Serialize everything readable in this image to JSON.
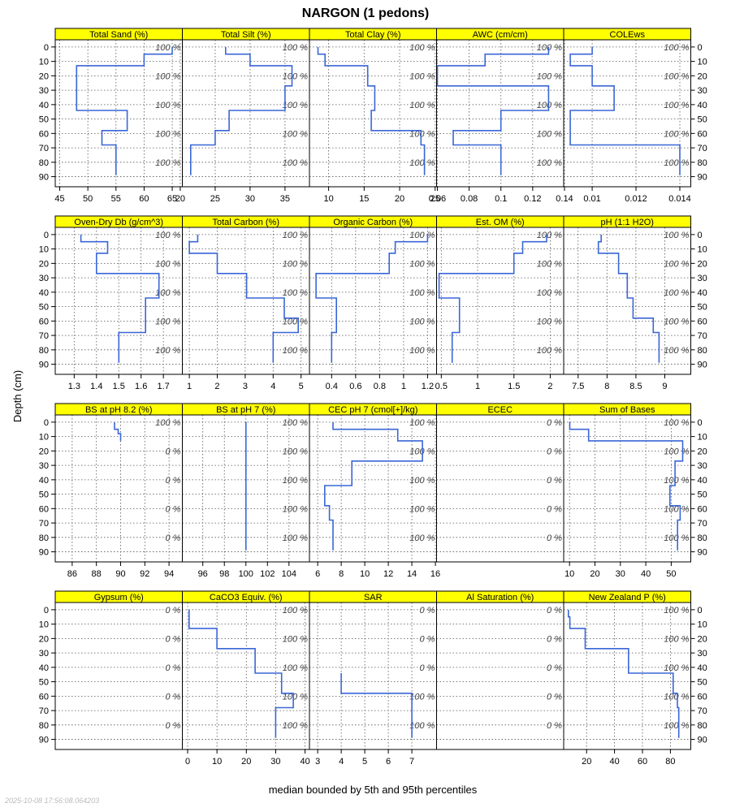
{
  "chart_data": {
    "type": "line",
    "title": "NARGON (1 pedons)",
    "xlabel": "median bounded by 5th and 95th percentiles",
    "ylabel": "Depth (cm)",
    "depth_ticks": [
      0,
      10,
      20,
      30,
      40,
      50,
      60,
      70,
      80,
      90
    ],
    "ylim": [
      -5,
      97
    ],
    "percent_depths": [
      0,
      20,
      40,
      60,
      80
    ],
    "colors": {
      "strip": "#ffff00",
      "line": "#3a66d6",
      "grid": "#555555",
      "frame": "#000000"
    },
    "panels": [
      {
        "title": "Total Sand (%)",
        "xlim": [
          44.2,
          66.8
        ],
        "ticks": [
          45,
          50,
          55,
          60,
          65
        ],
        "pct": [
          "100 %",
          "100 %",
          "100 %",
          "100 %",
          "100 %"
        ],
        "profile": [
          [
            65,
            0
          ],
          [
            65,
            5
          ],
          [
            60,
            5
          ],
          [
            60,
            13
          ],
          [
            48,
            13
          ],
          [
            48,
            44
          ],
          [
            57,
            44
          ],
          [
            57,
            58
          ],
          [
            52.5,
            58
          ],
          [
            52.5,
            68
          ],
          [
            55,
            68
          ],
          [
            55,
            89
          ]
        ]
      },
      {
        "title": "Total Silt (%)",
        "xlim": [
          20.3,
          38.5
        ],
        "ticks": [
          20,
          25,
          30,
          35
        ],
        "pct": [
          "100 %",
          "100 %",
          "100 %",
          "100 %",
          "100 %"
        ],
        "profile": [
          [
            26.5,
            0
          ],
          [
            26.5,
            5
          ],
          [
            30,
            5
          ],
          [
            30,
            13
          ],
          [
            36,
            13
          ],
          [
            36,
            27
          ],
          [
            35,
            27
          ],
          [
            35,
            44
          ],
          [
            27,
            44
          ],
          [
            27,
            58
          ],
          [
            25,
            58
          ],
          [
            25,
            68
          ],
          [
            21.5,
            68
          ],
          [
            21.5,
            89
          ]
        ]
      },
      {
        "title": "Total Clay (%)",
        "xlim": [
          7.3,
          25.2
        ],
        "ticks": [
          10,
          15,
          20,
          25
        ],
        "pct": [
          "100 %",
          "100 %",
          "100 %",
          "100 %",
          "100 %"
        ],
        "profile": [
          [
            8.5,
            0
          ],
          [
            8.5,
            5
          ],
          [
            9.5,
            5
          ],
          [
            9.5,
            13
          ],
          [
            15.5,
            13
          ],
          [
            15.5,
            27
          ],
          [
            16.5,
            27
          ],
          [
            16.5,
            44
          ],
          [
            16,
            44
          ],
          [
            16,
            58
          ],
          [
            23,
            58
          ],
          [
            23,
            68
          ],
          [
            23.5,
            68
          ],
          [
            23.5,
            89
          ]
        ]
      },
      {
        "title": "AWC (cm/cm)",
        "xlim": [
          0.0595,
          0.1395
        ],
        "ticks": [
          0.06,
          0.08,
          0.1,
          0.12,
          0.14
        ],
        "pct": [
          "100 %",
          "100 %",
          "100 %",
          "100 %",
          "100 %"
        ],
        "profile": [
          [
            0.13,
            0
          ],
          [
            0.13,
            5
          ],
          [
            0.09,
            5
          ],
          [
            0.09,
            13
          ],
          [
            0.06,
            13
          ],
          [
            0.06,
            27
          ],
          [
            0.13,
            27
          ],
          [
            0.13,
            44
          ],
          [
            0.1,
            44
          ],
          [
            0.1,
            58
          ],
          [
            0.07,
            58
          ],
          [
            0.07,
            68
          ],
          [
            0.1,
            68
          ],
          [
            0.1,
            89
          ]
        ]
      },
      {
        "title": "COLEws",
        "xlim": [
          0.0087,
          0.0145
        ],
        "ticks": [
          0.01,
          0.012,
          0.014
        ],
        "pct": [
          "100 %",
          "100 %",
          "100 %",
          "100 %",
          "100 %"
        ],
        "profile": [
          [
            0.01,
            0
          ],
          [
            0.01,
            5
          ],
          [
            0.009,
            5
          ],
          [
            0.009,
            13
          ],
          [
            0.01,
            13
          ],
          [
            0.01,
            27
          ],
          [
            0.011,
            27
          ],
          [
            0.011,
            44
          ],
          [
            0.009,
            44
          ],
          [
            0.009,
            68
          ],
          [
            0.014,
            68
          ],
          [
            0.014,
            89
          ]
        ]
      },
      {
        "title": "Oven-Dry Db (g/cm^3)",
        "xlim": [
          1.215,
          1.785
        ],
        "ticks": [
          1.3,
          1.4,
          1.5,
          1.6,
          1.7
        ],
        "pct": [
          "100 %",
          "100 %",
          "100 %",
          "100 %",
          "100 %"
        ],
        "profile": [
          [
            1.33,
            0
          ],
          [
            1.33,
            5
          ],
          [
            1.45,
            5
          ],
          [
            1.45,
            13
          ],
          [
            1.4,
            13
          ],
          [
            1.4,
            27
          ],
          [
            1.68,
            27
          ],
          [
            1.68,
            44
          ],
          [
            1.62,
            44
          ],
          [
            1.62,
            68
          ],
          [
            1.5,
            68
          ],
          [
            1.5,
            89
          ]
        ]
      },
      {
        "title": "Total Carbon (%)",
        "xlim": [
          0.75,
          5.3
        ],
        "ticks": [
          1,
          2,
          3,
          4,
          5
        ],
        "pct": [
          "100 %",
          "100 %",
          "100 %",
          "100 %",
          "100 %"
        ],
        "profile": [
          [
            1.3,
            0
          ],
          [
            1.3,
            5
          ],
          [
            1.0,
            5
          ],
          [
            1.0,
            13
          ],
          [
            2.0,
            13
          ],
          [
            2.0,
            27
          ],
          [
            3.05,
            27
          ],
          [
            3.05,
            44
          ],
          [
            4.4,
            44
          ],
          [
            4.4,
            58
          ],
          [
            4.9,
            58
          ],
          [
            4.9,
            68
          ],
          [
            4.0,
            68
          ],
          [
            4.0,
            89
          ]
        ]
      },
      {
        "title": "Organic Carbon (%)",
        "xlim": [
          0.215,
          1.275
        ],
        "ticks": [
          0.4,
          0.6,
          0.8,
          1.0,
          1.2
        ],
        "pct": [
          "100 %",
          "100 %",
          "100 %",
          "100 %",
          "100 %"
        ],
        "profile": [
          [
            1.2,
            0
          ],
          [
            1.2,
            5
          ],
          [
            0.93,
            5
          ],
          [
            0.93,
            13
          ],
          [
            0.88,
            13
          ],
          [
            0.88,
            27
          ],
          [
            0.27,
            27
          ],
          [
            0.27,
            44
          ],
          [
            0.44,
            44
          ],
          [
            0.44,
            68
          ],
          [
            0.4,
            68
          ],
          [
            0.4,
            89
          ]
        ]
      },
      {
        "title": "Est. OM (%)",
        "xlim": [
          0.435,
          2.185
        ],
        "ticks": [
          0.5,
          1.0,
          1.5,
          2.0
        ],
        "pct": [
          "100 %",
          "100 %",
          "100 %",
          "100 %",
          "100 %"
        ],
        "profile": [
          [
            1.95,
            0
          ],
          [
            1.95,
            5
          ],
          [
            1.62,
            5
          ],
          [
            1.62,
            13
          ],
          [
            1.5,
            13
          ],
          [
            1.5,
            27
          ],
          [
            0.47,
            27
          ],
          [
            0.47,
            44
          ],
          [
            0.75,
            44
          ],
          [
            0.75,
            68
          ],
          [
            0.65,
            68
          ],
          [
            0.65,
            89
          ]
        ]
      },
      {
        "title": "pH (1:1 H2O)",
        "xlim": [
          7.25,
          9.45
        ],
        "ticks": [
          7.5,
          8.0,
          8.5,
          9.0
        ],
        "pct": [
          "100 %",
          "100 %",
          "100 %",
          "100 %",
          "100 %"
        ],
        "profile": [
          [
            7.9,
            0
          ],
          [
            7.9,
            5
          ],
          [
            7.85,
            5
          ],
          [
            7.85,
            13
          ],
          [
            8.2,
            13
          ],
          [
            8.2,
            27
          ],
          [
            8.35,
            27
          ],
          [
            8.35,
            44
          ],
          [
            8.45,
            44
          ],
          [
            8.45,
            58
          ],
          [
            8.8,
            58
          ],
          [
            8.8,
            68
          ],
          [
            8.9,
            68
          ],
          [
            8.9,
            89
          ]
        ]
      },
      {
        "title": "BS at pH 8.2 (%)",
        "xlim": [
          84.6,
          95.1
        ],
        "ticks": [
          86,
          88,
          90,
          92,
          94
        ],
        "pct": [
          "100 %",
          "0 %",
          "0 %",
          "0 %",
          "0 %"
        ],
        "profile": [
          [
            89.5,
            0
          ],
          [
            89.5,
            5
          ],
          [
            89.8,
            5
          ],
          [
            89.8,
            8
          ],
          [
            90,
            8
          ],
          [
            90,
            13
          ]
        ]
      },
      {
        "title": "BS at pH 7 (%)",
        "xlim": [
          94.1,
          105.9
        ],
        "ticks": [
          96,
          98,
          100,
          102,
          104
        ],
        "pct": [
          "100 %",
          "100 %",
          "100 %",
          "100 %",
          "100 %"
        ],
        "profile": [
          [
            100,
            0
          ],
          [
            100,
            89
          ]
        ]
      },
      {
        "title": "CEC pH 7 (cmol[+]/kg)",
        "xlim": [
          5.3,
          16.1
        ],
        "ticks": [
          6,
          8,
          10,
          12,
          14,
          16
        ],
        "pct": [
          "100 %",
          "100 %",
          "100 %",
          "100 %",
          "100 %"
        ],
        "profile": [
          [
            7.3,
            0
          ],
          [
            7.3,
            5
          ],
          [
            12.8,
            5
          ],
          [
            12.8,
            13
          ],
          [
            14.9,
            13
          ],
          [
            14.9,
            27
          ],
          [
            8.9,
            27
          ],
          [
            8.9,
            44
          ],
          [
            6.6,
            44
          ],
          [
            6.6,
            58
          ],
          [
            7.0,
            58
          ],
          [
            7.0,
            68
          ],
          [
            7.3,
            68
          ],
          [
            7.3,
            89
          ]
        ]
      },
      {
        "title": "ECEC",
        "xlim": [
          0,
          1
        ],
        "ticks": [],
        "pct": [
          "0 %",
          "0 %",
          "0 %",
          "0 %",
          "0 %"
        ],
        "profile": []
      },
      {
        "title": "Sum of Bases",
        "xlim": [
          7.7,
          57.7
        ],
        "ticks": [
          10,
          20,
          30,
          40,
          50
        ],
        "pct": [
          "100 %",
          "100 %",
          "100 %",
          "100 %",
          "100 %"
        ],
        "profile": [
          [
            10.1,
            0
          ],
          [
            10.1,
            5
          ],
          [
            17.5,
            5
          ],
          [
            17.5,
            13
          ],
          [
            54.5,
            13
          ],
          [
            54.5,
            27
          ],
          [
            51.5,
            27
          ],
          [
            51.5,
            44
          ],
          [
            49.5,
            44
          ],
          [
            49.5,
            58
          ],
          [
            53.5,
            58
          ],
          [
            53.5,
            68
          ],
          [
            52.5,
            68
          ],
          [
            52.5,
            89
          ]
        ]
      },
      {
        "title": "Gypsum (%)",
        "xlim": [
          0,
          1
        ],
        "ticks": [],
        "pct": [
          "0 %",
          "0 %",
          "0 %",
          "0 %",
          "0 %"
        ],
        "profile": []
      },
      {
        "title": "CaCO3 Equiv. (%)",
        "xlim": [
          -1.8,
          41.5
        ],
        "ticks": [
          0,
          10,
          20,
          30,
          40
        ],
        "pct": [
          "100 %",
          "100 %",
          "100 %",
          "100 %",
          "100 %"
        ],
        "profile": [
          [
            0.5,
            0
          ],
          [
            0.5,
            13
          ],
          [
            10,
            13
          ],
          [
            10,
            27
          ],
          [
            23,
            27
          ],
          [
            23,
            44
          ],
          [
            32,
            44
          ],
          [
            32,
            58
          ],
          [
            36,
            58
          ],
          [
            36,
            68
          ],
          [
            30,
            68
          ],
          [
            30,
            89
          ]
        ]
      },
      {
        "title": "SAR",
        "xlim": [
          2.65,
          8.05
        ],
        "ticks": [
          3,
          4,
          5,
          6,
          7
        ],
        "pct": [
          "0 %",
          "0 %",
          "0 %",
          "100 %",
          "100 %"
        ],
        "profile": [
          [
            4,
            44
          ],
          [
            4,
            58
          ],
          [
            7,
            58
          ],
          [
            7,
            89
          ]
        ]
      },
      {
        "title": "Al Saturation (%)",
        "xlim": [
          0,
          1
        ],
        "ticks": [],
        "pct": [
          "0 %",
          "0 %",
          "0 %",
          "0 %",
          "0 %"
        ],
        "profile": []
      },
      {
        "title": "New Zealand P (%)",
        "xlim": [
          3.6,
          94.6
        ],
        "ticks": [
          20,
          40,
          60,
          80
        ],
        "pct": [
          "100 %",
          "100 %",
          "100 %",
          "100 %",
          "100 %"
        ],
        "profile": [
          [
            7,
            0
          ],
          [
            7,
            5
          ],
          [
            8,
            5
          ],
          [
            8,
            13
          ],
          [
            19,
            13
          ],
          [
            19,
            27
          ],
          [
            50,
            27
          ],
          [
            50,
            44
          ],
          [
            82,
            44
          ],
          [
            82,
            58
          ],
          [
            85,
            58
          ],
          [
            85,
            68
          ],
          [
            86,
            68
          ],
          [
            86,
            89
          ]
        ]
      }
    ]
  },
  "footer": {
    "timestamp": "2025-10-08 17:56:08.064203"
  }
}
